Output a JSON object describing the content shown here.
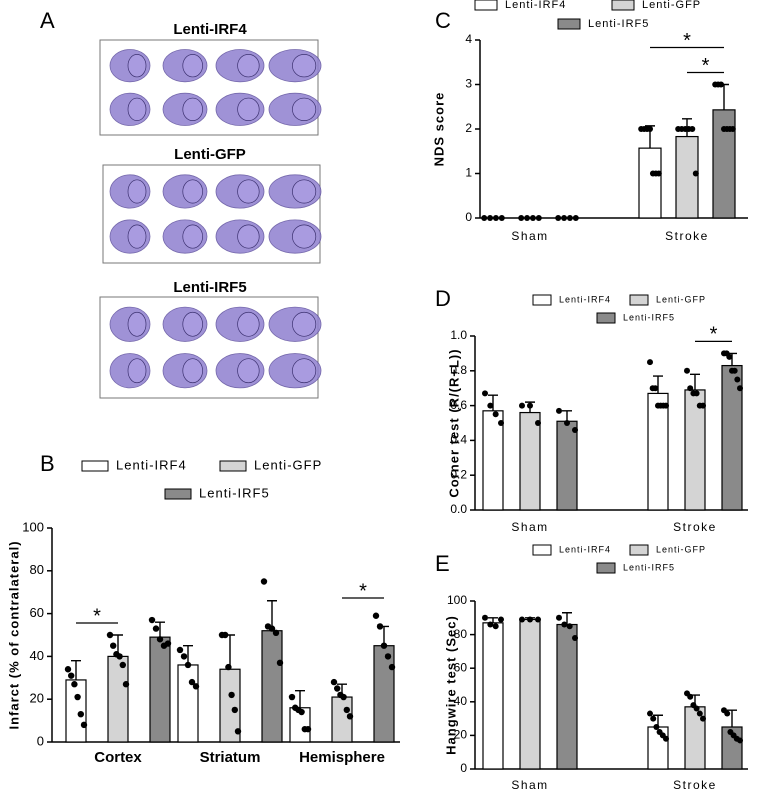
{
  "panel_a": {
    "label": "A",
    "sections": [
      "Lenti-IRF4",
      "Lenti-GFP",
      "Lenti-IRF5"
    ]
  },
  "chart_data": [
    {
      "type": "bar",
      "panel": "B",
      "ylabel": "Infarct (% of contralateral)",
      "categories": [
        "Cortex",
        "Striatum",
        "Hemisphere"
      ],
      "series": [
        {
          "name": "Lenti-IRF4",
          "color": "#ffffff",
          "values": [
            29,
            36,
            16
          ],
          "errors": [
            9,
            9,
            8
          ],
          "points": [
            [
              34,
              31,
              27,
              21,
              13,
              8
            ],
            [
              43,
              40,
              36,
              28,
              26
            ],
            [
              21,
              16,
              15,
              14,
              6,
              6
            ]
          ]
        },
        {
          "name": "Lenti-GFP",
          "color": "#d4d4d4",
          "values": [
            40,
            34,
            21
          ],
          "errors": [
            10,
            16,
            6
          ],
          "points": [
            [
              50,
              45,
              41,
              40,
              36,
              27
            ],
            [
              50,
              50,
              35,
              22,
              15,
              5
            ],
            [
              28,
              25,
              22,
              21,
              15,
              12
            ]
          ]
        },
        {
          "name": "Lenti-IRF5",
          "color": "#8a8a8a",
          "values": [
            49,
            52,
            45
          ],
          "errors": [
            7,
            14,
            9
          ],
          "points": [
            [
              57,
              53,
              48,
              45,
              46
            ],
            [
              75,
              54,
              53,
              51,
              37
            ],
            [
              59,
              54,
              45,
              40,
              35
            ]
          ]
        }
      ],
      "ylim": [
        0,
        100
      ],
      "yticks": [
        0,
        20,
        40,
        60,
        80,
        100
      ],
      "significance": [
        {
          "text": "*",
          "category": 0,
          "series": [
            0,
            1
          ]
        },
        {
          "text": "*",
          "category": 2,
          "series": [
            1,
            2
          ]
        }
      ]
    },
    {
      "type": "bar",
      "panel": "C",
      "ylabel": "NDS score",
      "categories": [
        "Sham",
        "Stroke"
      ],
      "series": [
        {
          "name": "Lenti-IRF4",
          "color": "#ffffff",
          "values": [
            0,
            1.57
          ],
          "errors": [
            0,
            0.5
          ],
          "points": [
            [
              0,
              0,
              0,
              0
            ],
            [
              2,
              2,
              2,
              2,
              1,
              1,
              1
            ]
          ]
        },
        {
          "name": "Lenti-GFP",
          "color": "#d4d4d4",
          "values": [
            0,
            1.83
          ],
          "errors": [
            0,
            0.4
          ],
          "points": [
            [
              0,
              0,
              0,
              0
            ],
            [
              2,
              2,
              2,
              2,
              2,
              1
            ]
          ]
        },
        {
          "name": "Lenti-IRF5",
          "color": "#8a8a8a",
          "values": [
            0,
            2.43
          ],
          "errors": [
            0,
            0.57
          ],
          "points": [
            [
              0,
              0,
              0,
              0
            ],
            [
              3,
              3,
              3,
              2,
              2,
              2,
              2
            ]
          ]
        }
      ],
      "ylim": [
        0,
        4
      ],
      "yticks": [
        0,
        1,
        2,
        3,
        4
      ],
      "significance": [
        {
          "text": "*",
          "category": 1,
          "series": [
            1,
            2
          ]
        },
        {
          "text": "*",
          "category": 1,
          "series": [
            0,
            2
          ]
        }
      ]
    },
    {
      "type": "bar",
      "panel": "D",
      "ylabel": "Corner test (R/(R+L))",
      "categories": [
        "Sham",
        "Stroke"
      ],
      "series": [
        {
          "name": "Lenti-IRF4",
          "color": "#ffffff",
          "values": [
            0.57,
            0.67
          ],
          "errors": [
            0.09,
            0.1
          ],
          "points": [
            [
              0.67,
              0.6,
              0.55,
              0.5
            ],
            [
              0.85,
              0.7,
              0.7,
              0.6,
              0.6,
              0.6,
              0.6
            ]
          ]
        },
        {
          "name": "Lenti-GFP",
          "color": "#d4d4d4",
          "values": [
            0.56,
            0.69
          ],
          "errors": [
            0.06,
            0.09
          ],
          "points": [
            [
              0.6,
              0.6,
              0.5
            ],
            [
              0.8,
              0.7,
              0.67,
              0.67,
              0.6,
              0.6
            ]
          ]
        },
        {
          "name": "Lenti-IRF5",
          "color": "#8a8a8a",
          "values": [
            0.51,
            0.83
          ],
          "errors": [
            0.06,
            0.07
          ],
          "points": [
            [
              0.57,
              0.5,
              0.46
            ],
            [
              0.9,
              0.9,
              0.88,
              0.8,
              0.8,
              0.75,
              0.7
            ]
          ]
        }
      ],
      "ylim": [
        0,
        1
      ],
      "yticks": [
        {
          "value": 0,
          "label": "0.0"
        },
        0.2,
        0.4,
        0.6,
        0.8,
        {
          "value": 1,
          "label": "1.0"
        }
      ],
      "significance": [
        {
          "text": "*",
          "category": 1,
          "series": [
            1,
            2
          ]
        }
      ]
    },
    {
      "type": "bar",
      "panel": "E",
      "ylabel": "Hangwire test (Sec)",
      "categories": [
        "Sham",
        "Stroke"
      ],
      "series": [
        {
          "name": "Lenti-IRF4",
          "color": "#ffffff",
          "values": [
            87,
            25
          ],
          "errors": [
            3,
            7
          ],
          "points": [
            [
              90,
              86,
              85,
              89
            ],
            [
              33,
              30,
              25,
              22,
              20,
              18
            ]
          ]
        },
        {
          "name": "Lenti-GFP",
          "color": "#d4d4d4",
          "values": [
            89,
            37
          ],
          "errors": [
            1,
            7
          ],
          "points": [
            [
              89,
              89,
              89
            ],
            [
              45,
              43,
              38,
              36,
              33,
              30
            ]
          ]
        },
        {
          "name": "Lenti-IRF5",
          "color": "#8a8a8a",
          "values": [
            86,
            25
          ],
          "errors": [
            7,
            10
          ],
          "points": [
            [
              90,
              86,
              85,
              78
            ],
            [
              35,
              33,
              22,
              20,
              18,
              17
            ]
          ]
        }
      ],
      "ylim": [
        0,
        100
      ],
      "yticks": [
        0,
        20,
        40,
        60,
        80,
        100
      ],
      "significance": []
    }
  ]
}
